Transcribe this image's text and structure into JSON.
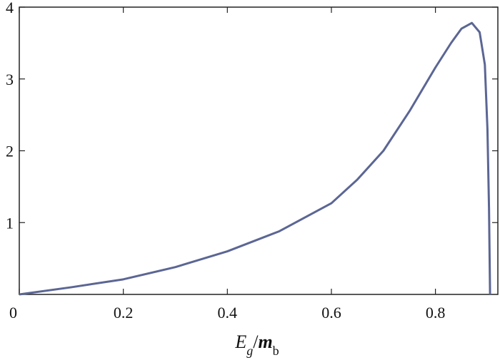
{
  "chart_data": {
    "type": "line",
    "x": [
      0,
      0.1,
      0.2,
      0.3,
      0.4,
      0.5,
      0.6,
      0.65,
      0.7,
      0.75,
      0.8,
      0.83,
      0.85,
      0.87,
      0.885,
      0.895,
      0.9,
      0.903,
      0.905
    ],
    "values": [
      0,
      0.1,
      0.21,
      0.38,
      0.6,
      0.88,
      1.27,
      1.6,
      2.0,
      2.55,
      3.16,
      3.5,
      3.7,
      3.78,
      3.65,
      3.2,
      2.3,
      1.2,
      0
    ],
    "color": "#5b6694",
    "xlim": [
      0,
      0.92
    ],
    "xticks": [
      0,
      0.2,
      0.4,
      0.6,
      0.8
    ],
    "ylim": [
      0,
      4
    ],
    "yticks": [
      1,
      2,
      3,
      4
    ],
    "xlabel_parts": [
      "E",
      "g",
      "/",
      "m",
      "b"
    ]
  }
}
